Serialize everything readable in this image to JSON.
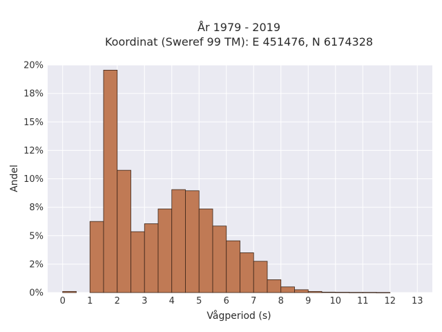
{
  "chart_data": {
    "type": "bar",
    "title": "År 1979 - 2019",
    "subtitle": "Koordinat (Sweref 99 TM): E 451476, N 6174328",
    "xlabel": "Vågperiod (s)",
    "ylabel": "Andel",
    "xlim": [
      -0.55,
      13.55
    ],
    "ylim": [
      0,
      0.2
    ],
    "xticks": [
      0,
      1,
      2,
      3,
      4,
      5,
      6,
      7,
      8,
      9,
      10,
      11,
      12,
      13
    ],
    "xtick_labels": [
      "0",
      "1",
      "2",
      "3",
      "4",
      "5",
      "6",
      "7",
      "8",
      "9",
      "10",
      "11",
      "12",
      "13"
    ],
    "yticks": [
      0,
      0.025,
      0.05,
      0.075,
      0.1,
      0.125,
      0.15,
      0.175,
      0.2
    ],
    "ytick_labels": [
      "0%",
      "2%",
      "5%",
      "8%",
      "10%",
      "12%",
      "15%",
      "18%",
      "20%"
    ],
    "bin_width": 0.5,
    "bar_color": "#c07a55",
    "bar_edge_color": "#3a2418",
    "background": "#eaeaf2",
    "grid": true,
    "bins": [
      {
        "x0": 0.0,
        "value": 0.001
      },
      {
        "x0": 1.0,
        "value": 0.0625
      },
      {
        "x0": 1.5,
        "value": 0.1955
      },
      {
        "x0": 2.0,
        "value": 0.1075
      },
      {
        "x0": 2.5,
        "value": 0.0535
      },
      {
        "x0": 3.0,
        "value": 0.0605
      },
      {
        "x0": 3.5,
        "value": 0.0735
      },
      {
        "x0": 4.0,
        "value": 0.0905
      },
      {
        "x0": 4.5,
        "value": 0.0895
      },
      {
        "x0": 5.0,
        "value": 0.0735
      },
      {
        "x0": 5.5,
        "value": 0.0585
      },
      {
        "x0": 6.0,
        "value": 0.0455
      },
      {
        "x0": 6.5,
        "value": 0.035
      },
      {
        "x0": 7.0,
        "value": 0.0275
      },
      {
        "x0": 7.5,
        "value": 0.0113
      },
      {
        "x0": 8.0,
        "value": 0.005
      },
      {
        "x0": 8.5,
        "value": 0.0025
      },
      {
        "x0": 9.0,
        "value": 0.001
      },
      {
        "x0": 9.5,
        "value": 0.0004
      },
      {
        "x0": 10.0,
        "value": 0.0003
      },
      {
        "x0": 10.5,
        "value": 0.0002
      },
      {
        "x0": 11.0,
        "value": 0.0002
      },
      {
        "x0": 11.5,
        "value": 0.0001
      }
    ]
  }
}
